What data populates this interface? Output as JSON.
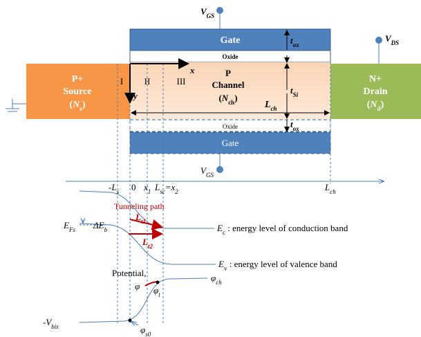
{
  "vgs_top": {
    "sym": "V",
    "sub": "GS"
  },
  "vds": {
    "sym": "V",
    "sub": "DS"
  },
  "vgs_bottom": {
    "sym": "V",
    "sub": "GS"
  },
  "gate_top": "Gate",
  "oxide_top": "Oxide",
  "oxide_bottom": "Oxide",
  "gate_bottom": "Gate",
  "source": {
    "l1": "P+",
    "l2": "Source",
    "pre": "(",
    "sym": "N",
    "sub": "s",
    "post": ")"
  },
  "channel": {
    "l1": "P",
    "l2": "Channel",
    "pre": "(",
    "sym": "N",
    "sub": "ch",
    "post": ")"
  },
  "drain": {
    "l1": "N+",
    "l2": "Drain",
    "pre": "(",
    "sym": "N",
    "sub": "d",
    "post": ")"
  },
  "regions": [
    "I",
    "II",
    "III"
  ],
  "axes": {
    "x": "x",
    "y": "y"
  },
  "tox_top": {
    "sym": "t",
    "sub": "ox"
  },
  "tox_bottom": {
    "sym": "t",
    "sub": "ox"
  },
  "tsi": {
    "sym": "t",
    "sub": "Si"
  },
  "lch": {
    "sym": "L",
    "sub": "ch"
  },
  "ticks": {
    "neg_ls": {
      "pre": "-",
      "sym": "L",
      "sub": "s"
    },
    "zero": "0",
    "x1": {
      "sym": "x",
      "sub": "1"
    },
    "lsc": {
      "sym": "L",
      "sub": "sc",
      "mid": "=",
      "sym2": "x",
      "sub2": "2"
    },
    "lch": {
      "sym": "L",
      "sub": "ch"
    }
  },
  "tunneling": "Tunneling path",
  "lt1": {
    "sym": "L",
    "sub": "t1"
  },
  "lt2": {
    "sym": "L",
    "sub": "t2"
  },
  "efs": {
    "sym": "E",
    "sub": "Fs"
  },
  "deb": {
    "sym": "ΔE",
    "sub": "b"
  },
  "ec": {
    "sym": "E",
    "sub": "c",
    "desc": " : energy level of conduction band"
  },
  "ev": {
    "sym": "E",
    "sub": "v",
    "desc": " : energy level of valence band"
  },
  "potential": "Potential,",
  "phi": "φ",
  "phi_ch": {
    "sym": "φ",
    "sub": "ch"
  },
  "phi_t": {
    "sym": "φ",
    "sub": "t"
  },
  "phi_s0": {
    "sym": "φ",
    "sub": "s0"
  },
  "vbis": {
    "pre": "-",
    "sym": "V",
    "sub": "bis"
  }
}
